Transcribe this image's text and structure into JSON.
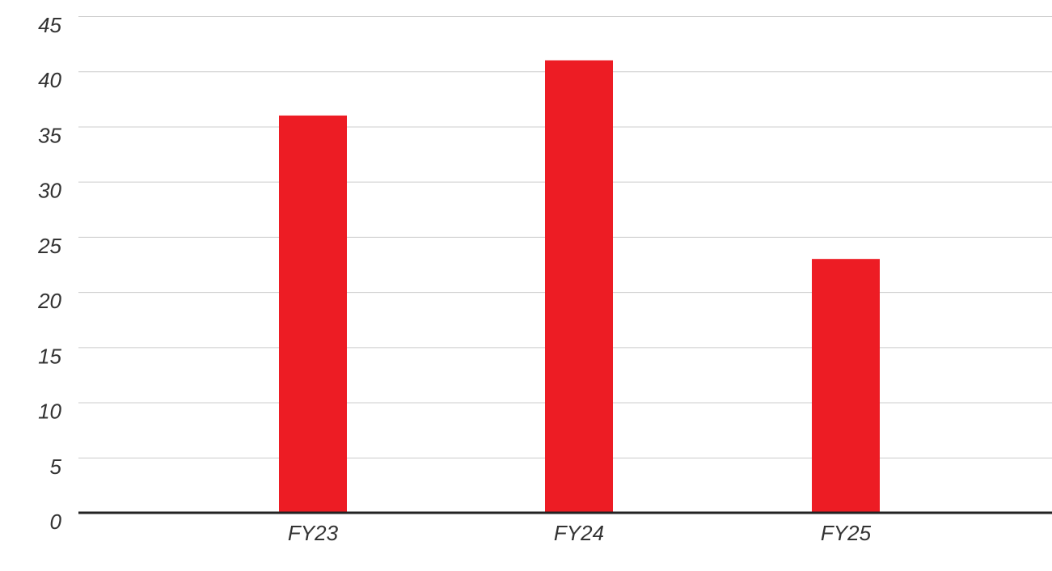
{
  "chart_data": {
    "type": "bar",
    "categories": [
      "FY23",
      "FY24",
      "FY25"
    ],
    "values": [
      36,
      41,
      23
    ],
    "title": "",
    "xlabel": "",
    "ylabel": "",
    "ylim": [
      0,
      45
    ],
    "yticks": [
      "0",
      "5",
      "10",
      "15",
      "20",
      "25",
      "30",
      "35",
      "40",
      "45"
    ],
    "grid": true,
    "legend": "none",
    "colors": {
      "bar": "#ED1C24",
      "grid": "#CCCCCC",
      "axis": "#222222",
      "text": "#333333"
    }
  }
}
